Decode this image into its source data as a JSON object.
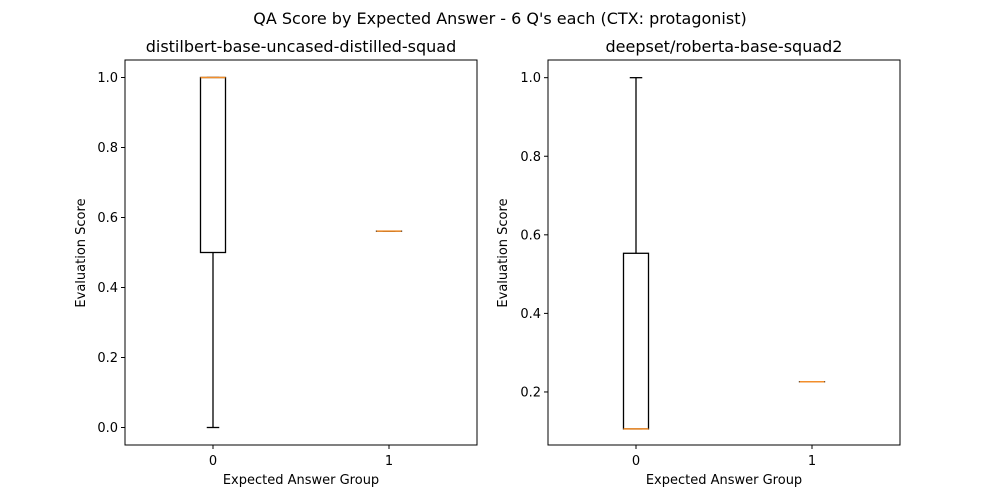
{
  "chart_data": {
    "title": "QA Score by Expected Answer - 6 Q's each (CTX: protagonist)",
    "type": "box",
    "subplots": [
      {
        "title": "distilbert-base-uncased-distilled-squad",
        "xlabel": "Expected Answer Group",
        "ylabel": "Evaluation Score",
        "categories": [
          "0",
          "1"
        ],
        "ylim": [
          -0.05,
          1.05
        ],
        "yticks": [
          "0.0",
          "0.2",
          "0.4",
          "0.6",
          "0.8",
          "1.0"
        ],
        "boxes": [
          {
            "group": "0",
            "whisker_low": 0.0,
            "q1": 0.5,
            "median": 1.0,
            "q3": 1.0,
            "whisker_high": 1.0
          },
          {
            "group": "1",
            "whisker_low": 0.561,
            "q1": 0.561,
            "median": 0.561,
            "q3": 0.561,
            "whisker_high": 0.561
          }
        ]
      },
      {
        "title": "deepset/roberta-base-squad2",
        "xlabel": "Expected Answer Group",
        "ylabel": "Evaluation Score",
        "categories": [
          "0",
          "1"
        ],
        "ylim": [
          0.065,
          1.045
        ],
        "yticks": [
          "0.2",
          "0.4",
          "0.6",
          "0.8",
          "1.0"
        ],
        "boxes": [
          {
            "group": "0",
            "whisker_low": 0.106,
            "q1": 0.106,
            "median": 0.106,
            "q3": 0.553,
            "whisker_high": 1.0
          },
          {
            "group": "1",
            "whisker_low": 0.226,
            "q1": 0.226,
            "median": 0.226,
            "q3": 0.226,
            "whisker_high": 0.226
          }
        ]
      }
    ],
    "colors": {
      "box": "#000000",
      "median": "#f28e2b"
    }
  }
}
